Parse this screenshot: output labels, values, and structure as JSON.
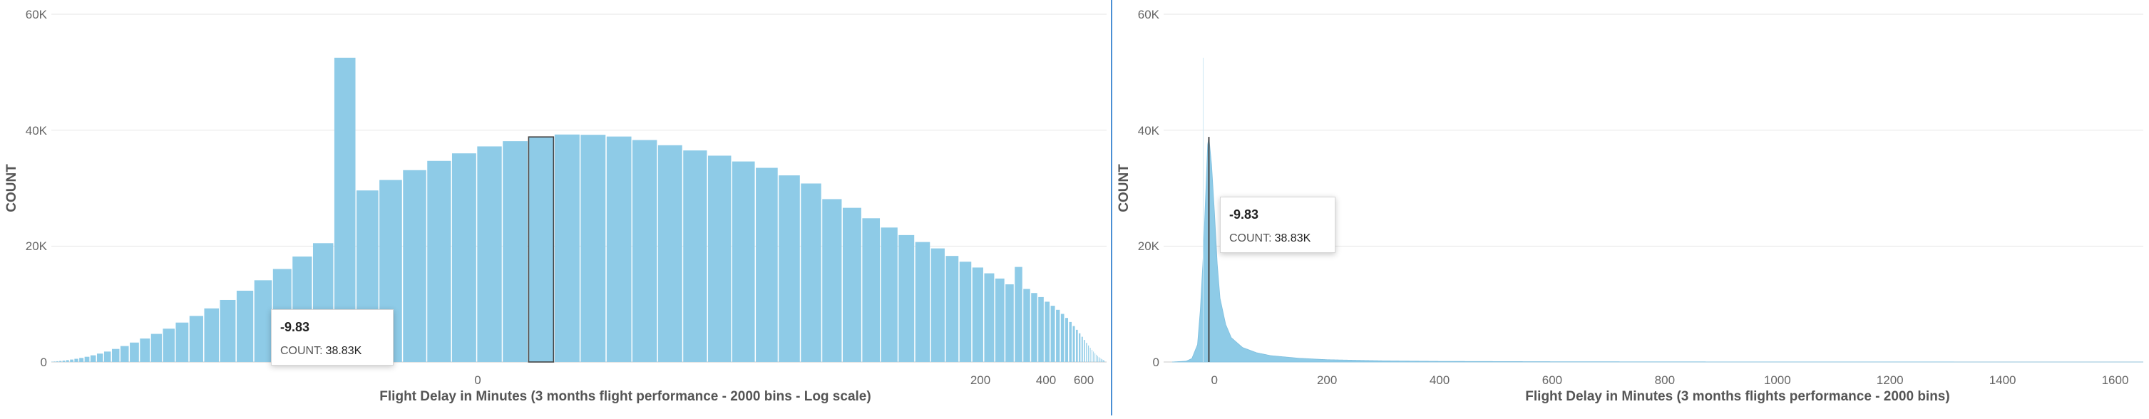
{
  "chart_data": [
    {
      "type": "bar",
      "xscale": "log",
      "xlabel": "Flight Delay in Minutes (3 months flight performance - 2000 bins - Log scale)",
      "ylabel": "COUNT",
      "ylim": [
        0,
        60000
      ],
      "y_ticks": [
        "0",
        "20K",
        "40K",
        "60K"
      ],
      "x_ticks": [
        "0",
        "200",
        "400",
        "600"
      ],
      "grid": true,
      "series": [
        {
          "values": [
            60,
            90,
            130,
            180,
            240,
            320,
            420,
            550,
            700,
            900,
            1150,
            1450,
            1800,
            2250,
            2750,
            3350,
            4050,
            4850,
            5750,
            6800,
            7950,
            9250,
            10700,
            12300,
            14100,
            16050,
            18200,
            20500,
            52500,
            29600,
            31400,
            33100,
            34700,
            36000,
            37200,
            38100,
            38830,
            39250,
            39200,
            38900,
            38300,
            37400,
            36500,
            35600,
            34600,
            33500,
            32200,
            30800,
            28100,
            26600,
            24800,
            23200,
            21900,
            20700,
            19600,
            18300,
            17300,
            16300,
            15300,
            14400,
            13400,
            16400,
            12600,
            11900,
            11200,
            10400,
            9700,
            9000,
            8300,
            7600,
            6900,
            6200,
            5550,
            4950,
            4350,
            3800,
            3300,
            2850,
            2450,
            2100,
            1800,
            1500,
            1250,
            1030,
            840,
            680,
            540,
            430,
            340,
            260
          ]
        }
      ],
      "highlight": {
        "label": "-9.83",
        "count": 38830
      },
      "tooltip": {
        "title": "-9.83",
        "label": "COUNT:",
        "value": "38.83K"
      }
    },
    {
      "type": "bar",
      "xlabel": "Flight Delay in Minutes (3 months flights performance - 2000 bins)",
      "ylabel": "COUNT",
      "ylim": [
        0,
        60000
      ],
      "xlim": [
        -75,
        1650
      ],
      "y_ticks": [
        "0",
        "20K",
        "40K",
        "60K"
      ],
      "x_ticks": [
        "0",
        "200",
        "400",
        "600",
        "800",
        "1000",
        "1200",
        "1400",
        "1600"
      ],
      "grid": true,
      "series": [
        {
          "shape": "sharp peak near 0 minutes with long right tail",
          "points": [
            [
              -75,
              0
            ],
            [
              -50,
              150
            ],
            [
              -40,
              600
            ],
            [
              -30,
              3000
            ],
            [
              -25,
              9000
            ],
            [
              -20,
              18000
            ],
            [
              -15,
              30000
            ],
            [
              -12,
              37500
            ],
            [
              -9.83,
              38830
            ],
            [
              -5,
              34000
            ],
            [
              0,
              26000
            ],
            [
              5,
              17000
            ],
            [
              10,
              11000
            ],
            [
              20,
              6500
            ],
            [
              30,
              4200
            ],
            [
              50,
              2500
            ],
            [
              75,
              1600
            ],
            [
              100,
              1100
            ],
            [
              150,
              650
            ],
            [
              200,
              400
            ],
            [
              300,
              200
            ],
            [
              400,
              110
            ],
            [
              600,
              50
            ],
            [
              800,
              25
            ],
            [
              1000,
              12
            ],
            [
              1200,
              6
            ],
            [
              1400,
              3
            ],
            [
              1600,
              1
            ]
          ]
        }
      ],
      "highlight": {
        "label": "-9.83",
        "count": 38830
      },
      "tooltip": {
        "title": "-9.83",
        "label": "COUNT:",
        "value": "38.83K"
      }
    }
  ],
  "colors": {
    "bar": "#8ecbe7",
    "highlight_stroke": "#444444",
    "grid": "#e6e6e6",
    "divider": "#4a8fd4"
  }
}
